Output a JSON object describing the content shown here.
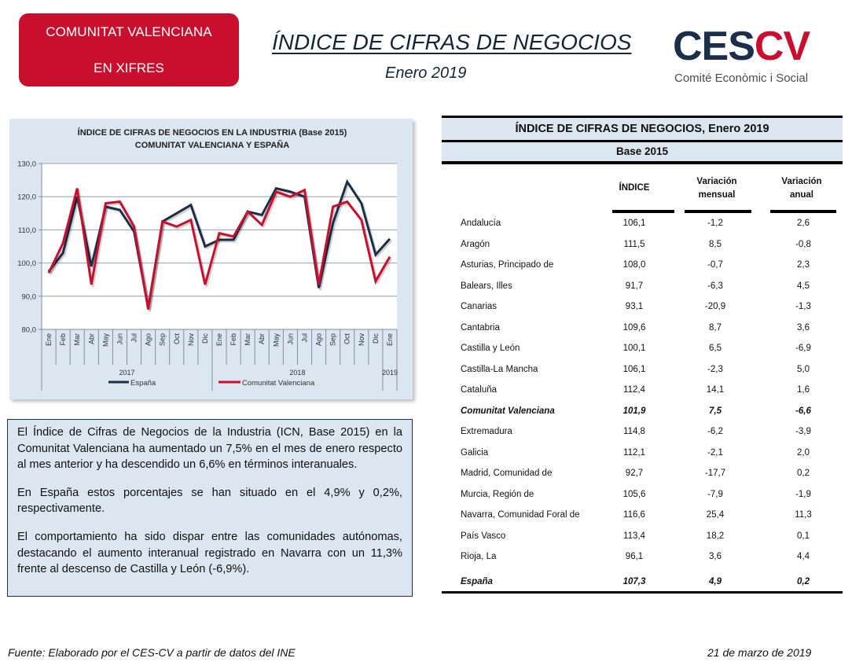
{
  "header": {
    "badge_line1": "COMUNITAT VALENCIANA",
    "badge_line2": "EN XIFRES",
    "title": "ÍNDICE DE CIFRAS DE NEGOCIOS",
    "subtitle": "Enero 2019",
    "logo_letters_dark": "CES",
    "logo_letters_red": "CV",
    "logo_subtitle": "Comité Econòmic i Social"
  },
  "colors": {
    "brand_red": "#c8102e",
    "brand_navy": "#1c2f4a",
    "panel_blue": "#dce6f1"
  },
  "chart_data": {
    "type": "line",
    "title_line1": "ÍNDICE DE CIFRAS DE NEGOCIOS  EN LA INDUSTRIA (Base 2015)",
    "title_line2": "COMUNITAT  VALENCIANA  Y ESPAÑA",
    "xlabel": "",
    "ylabel": "",
    "ylim": [
      80,
      130
    ],
    "yticks": [
      "80,0",
      "90,0",
      "100,0",
      "110,0",
      "120,0",
      "130,0"
    ],
    "ytick_values": [
      80,
      90,
      100,
      110,
      120,
      130
    ],
    "grid": true,
    "legend_position": "bottom",
    "categories": [
      "Ene",
      "Feb",
      "Mar",
      "Abr",
      "May",
      "Jun",
      "Jul",
      "Ago",
      "Sep",
      "Oct",
      "Nov",
      "Dic",
      "Ene",
      "Feb",
      "Mar",
      "Abr",
      "May",
      "Jun",
      "Jul",
      "Ago",
      "Sep",
      "Oct",
      "Nov",
      "Dic",
      "Ene"
    ],
    "year_groups": [
      {
        "label": "2017",
        "count": 12
      },
      {
        "label": "2018",
        "count": 12
      },
      {
        "label": "2019",
        "count": 1
      }
    ],
    "series": [
      {
        "name": "España",
        "color": "#1c2f4a",
        "values": [
          97.5,
          103.0,
          120.0,
          99.0,
          117.0,
          116.0,
          109.5,
          86.5,
          112.5,
          115.0,
          117.5,
          105.0,
          107.0,
          107.0,
          115.5,
          114.5,
          122.5,
          121.5,
          120.0,
          92.5,
          112.0,
          124.5,
          118.0,
          102.5,
          107.3
        ]
      },
      {
        "name": "Comunitat Valenciana",
        "color": "#c8102e",
        "values": [
          97.0,
          106.0,
          122.5,
          93.5,
          118.0,
          118.5,
          111.0,
          86.0,
          112.5,
          111.0,
          113.0,
          93.5,
          109.0,
          108.0,
          115.5,
          111.5,
          121.5,
          120.0,
          122.0,
          93.5,
          117.0,
          118.5,
          113.0,
          94.5,
          101.9
        ]
      }
    ]
  },
  "commentary": {
    "paragraphs": [
      "El Índice de Cifras de Negocios de la Industria (ICN, Base 2015) en la Comunitat Valenciana ha aumentado un 7,5% en el mes de enero respecto al mes anterior y ha descendido un 6,6% en términos interanuales.",
      "En España estos porcentajes se han situado en el 4,9% y 0,2%, respectivamente.",
      "El comportamiento ha sido dispar entre las comunidades autónomas, destacando el aumento interanual registrado en Navarra con un 11,3% frente al descenso de Castilla y León (-6,9%)."
    ]
  },
  "table": {
    "title": "ÍNDICE DE CIFRAS DE NEGOCIOS, Enero 2019",
    "subtitle": "Base 2015",
    "columns": {
      "indice": "ÍNDICE",
      "var_mensual_1": "Variación",
      "var_mensual_2": "mensual",
      "var_anual_1": "Variación",
      "var_anual_2": "anual"
    },
    "rows": [
      {
        "name": "Andalucía",
        "indice": "106,1",
        "mensual": "-1,2",
        "anual": "2,6"
      },
      {
        "name": "Aragón",
        "indice": "111,5",
        "mensual": "8,5",
        "anual": "-0,8"
      },
      {
        "name": "Asturias, Principado de",
        "indice": "108,0",
        "mensual": "-0,7",
        "anual": "2,3"
      },
      {
        "name": "Balears, Illes",
        "indice": "91,7",
        "mensual": "-6,3",
        "anual": "4,5"
      },
      {
        "name": "Canarias",
        "indice": "93,1",
        "mensual": "-20,9",
        "anual": "-1,3"
      },
      {
        "name": "Cantabria",
        "indice": "109,6",
        "mensual": "8,7",
        "anual": "3,6"
      },
      {
        "name": "Castilla y León",
        "indice": "100,1",
        "mensual": "6,5",
        "anual": "-6,9"
      },
      {
        "name": "Castilla-La Mancha",
        "indice": "106,1",
        "mensual": "-2,3",
        "anual": "5,0"
      },
      {
        "name": "Cataluña",
        "indice": "112,4",
        "mensual": "14,1",
        "anual": "1,6"
      },
      {
        "name": "Comunitat Valenciana",
        "indice": "101,9",
        "mensual": "7,5",
        "anual": "-6,6",
        "highlight": true
      },
      {
        "name": "Extremadura",
        "indice": "114,8",
        "mensual": "-6,2",
        "anual": "-3,9"
      },
      {
        "name": "Galicia",
        "indice": "112,1",
        "mensual": "-2,1",
        "anual": "2,0"
      },
      {
        "name": "Madrid, Comunidad de",
        "indice": "92,7",
        "mensual": "-17,7",
        "anual": "0,2"
      },
      {
        "name": "Murcia, Región de",
        "indice": "105,6",
        "mensual": "-7,9",
        "anual": "-1,9"
      },
      {
        "name": "Navarra, Comunidad Foral de",
        "indice": "116,6",
        "mensual": "25,4",
        "anual": "11,3"
      },
      {
        "name": "País Vasco",
        "indice": "113,4",
        "mensual": "18,2",
        "anual": "0,1"
      },
      {
        "name": "Rioja, La",
        "indice": "96,1",
        "mensual": "3,6",
        "anual": "4,4"
      }
    ],
    "total": {
      "name": "España",
      "indice": "107,3",
      "mensual": "4,9",
      "anual": "0,2"
    }
  },
  "footer": {
    "source": "Fuente: Elaborado por el CES-CV a partir de datos del INE",
    "date": "21 de marzo de 2019"
  }
}
